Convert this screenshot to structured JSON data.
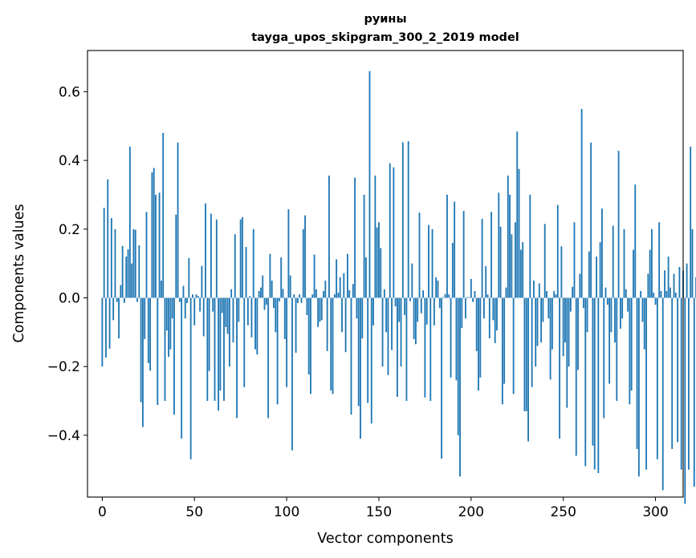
{
  "chart_data": {
    "type": "bar",
    "title": "руины",
    "subtitle": "tayga_upos_skipgram_300_2_2019 model",
    "xlabel": "Vector components",
    "ylabel": "Components values",
    "xlim": [
      -8,
      315
    ],
    "ylim": [
      -0.58,
      0.72
    ],
    "xticks": [
      0,
      50,
      100,
      150,
      200,
      250,
      300
    ],
    "xtick_labels": [
      "0",
      "50",
      "100",
      "150",
      "200",
      "250",
      "300"
    ],
    "yticks": [
      -0.4,
      -0.2,
      0.0,
      0.2,
      0.4,
      0.6
    ],
    "ytick_labels": [
      "−0.4",
      "−0.2",
      "0.0",
      "0.2",
      "0.4",
      "0.6"
    ],
    "bar_color": "#1f77b4",
    "grid": false,
    "values": [
      -0.2,
      0.262,
      -0.174,
      0.345,
      -0.148,
      0.232,
      -0.065,
      0.2,
      -0.012,
      -0.118,
      0.037,
      0.151,
      -0.015,
      0.12,
      0.141,
      0.44,
      0.1,
      0.2,
      0.198,
      -0.012,
      0.153,
      -0.304,
      -0.376,
      -0.12,
      0.25,
      -0.19,
      -0.212,
      0.365,
      0.378,
      0.3,
      -0.312,
      0.306,
      0.05,
      0.48,
      -0.3,
      -0.095,
      -0.172,
      -0.15,
      -0.06,
      -0.34,
      0.242,
      0.452,
      -0.012,
      -0.41,
      0.035,
      -0.06,
      -0.015,
      0.116,
      -0.47,
      0.01,
      -0.08,
      0.01,
      0.005,
      -0.04,
      0.093,
      -0.112,
      0.275,
      -0.3,
      -0.213,
      0.245,
      -0.04,
      -0.3,
      0.228,
      -0.328,
      -0.27,
      -0.044,
      -0.3,
      -0.085,
      -0.105,
      -0.2,
      0.025,
      -0.13,
      0.185,
      -0.35,
      -0.07,
      0.228,
      0.235,
      -0.26,
      0.148,
      -0.08,
      0.005,
      -0.115,
      0.2,
      -0.15,
      -0.165,
      0.02,
      0.03,
      0.065,
      -0.035,
      -0.02,
      -0.35,
      0.128,
      0.05,
      -0.03,
      -0.1,
      -0.31,
      -0.01,
      0.118,
      0.026,
      -0.12,
      -0.26,
      0.258,
      0.065,
      -0.444,
      0.01,
      -0.16,
      -0.015,
      0.01,
      -0.015,
      0.2,
      0.24,
      -0.05,
      -0.223,
      -0.28,
      0.01,
      0.126,
      0.025,
      -0.085,
      -0.07,
      -0.065,
      0.02,
      0.05,
      -0.155,
      0.356,
      -0.27,
      -0.28,
      0.01,
      0.112,
      0.015,
      0.06,
      -0.1,
      0.072,
      -0.158,
      0.128,
      0.022,
      -0.34,
      0.04,
      0.35,
      -0.06,
      -0.315,
      -0.41,
      -0.118,
      0.3,
      0.118,
      -0.306,
      0.66,
      -0.366,
      -0.08,
      0.356,
      0.205,
      0.22,
      0.145,
      -0.2,
      0.025,
      -0.1,
      -0.225,
      0.392,
      -0.152,
      0.38,
      -0.025,
      -0.288,
      -0.07,
      -0.2,
      0.453,
      -0.05,
      -0.3,
      0.456,
      -0.01,
      0.1,
      -0.12,
      -0.135,
      -0.07,
      0.248,
      -0.045,
      0.022,
      -0.29,
      -0.078,
      0.212,
      -0.3,
      0.2,
      -0.08,
      0.06,
      0.05,
      -0.03,
      -0.468,
      0.002,
      0.011,
      0.3,
      0.01,
      -0.232,
      0.16,
      0.28,
      -0.24,
      -0.4,
      -0.52,
      -0.088,
      0.253,
      -0.06,
      0.002,
      0.002,
      0.055,
      -0.012,
      0.02,
      -0.155,
      -0.27,
      -0.232,
      0.23,
      -0.06,
      0.092,
      0.01,
      -0.118,
      0.25,
      -0.065,
      -0.132,
      -0.095,
      0.306,
      0.207,
      -0.31,
      -0.25,
      0.03,
      0.356,
      0.3,
      0.185,
      -0.28,
      0.22,
      0.484,
      0.375,
      0.14,
      0.162,
      -0.33,
      -0.33,
      -0.418,
      0.3,
      -0.26,
      0.05,
      -0.2,
      -0.14,
      0.042,
      -0.13,
      -0.07,
      0.215,
      0.02,
      -0.06,
      -0.238,
      -0.15,
      0.02,
      0.01,
      0.27,
      -0.41,
      0.15,
      -0.17,
      -0.13,
      -0.32,
      -0.2,
      -0.04,
      0.032,
      0.22,
      -0.46,
      -0.21,
      0.07,
      0.55,
      -0.03,
      -0.49,
      -0.1,
      0.135,
      0.452,
      -0.43,
      -0.5,
      0.12,
      -0.51,
      0.162,
      0.26,
      -0.35,
      0.03,
      -0.02,
      -0.25,
      -0.1,
      0.21,
      -0.13,
      -0.3,
      0.428,
      -0.09,
      -0.06,
      0.2,
      0.025,
      -0.04,
      -0.31,
      -0.27,
      0.14,
      0.33,
      -0.44,
      -0.52,
      0.02,
      -0.07,
      -0.15,
      -0.5,
      0.07,
      0.14,
      0.2,
      0.015,
      -0.02,
      -0.47,
      0.22,
      0.02,
      -0.56,
      0.08,
      0.02,
      0.12,
      0.03,
      -0.44,
      0.07,
      0.015,
      -0.42,
      0.09,
      -0.5,
      0.08,
      -0.6,
      0.1,
      -0.5,
      0.44,
      0.2,
      -0.55,
      0.06
    ]
  }
}
